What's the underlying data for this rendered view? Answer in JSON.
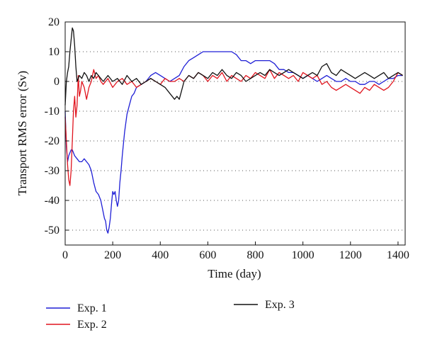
{
  "chart_data": {
    "type": "line",
    "xlabel": "Time (day)",
    "ylabel": "Transport RMS error (Sv)",
    "xlim": [
      0,
      1430
    ],
    "ylim": [
      -55,
      20
    ],
    "xticks": [
      0,
      200,
      400,
      600,
      800,
      1000,
      1200,
      1400
    ],
    "yticks": [
      -50,
      -40,
      -30,
      -20,
      -10,
      0,
      10,
      20
    ],
    "grid": "dotted horizontal",
    "legend_position": "bottom",
    "series": [
      {
        "name": "Exp. 1",
        "color": "#1f1fd6",
        "x": [
          0,
          5,
          10,
          15,
          20,
          25,
          30,
          40,
          50,
          60,
          70,
          80,
          90,
          100,
          110,
          120,
          130,
          140,
          150,
          155,
          160,
          165,
          170,
          175,
          180,
          185,
          190,
          195,
          200,
          205,
          210,
          215,
          220,
          225,
          230,
          235,
          240,
          250,
          260,
          270,
          280,
          290,
          300,
          320,
          340,
          360,
          380,
          400,
          420,
          440,
          460,
          480,
          500,
          520,
          540,
          560,
          580,
          600,
          620,
          640,
          660,
          680,
          700,
          720,
          740,
          760,
          780,
          800,
          820,
          840,
          860,
          880,
          900,
          920,
          940,
          960,
          980,
          1000,
          1020,
          1040,
          1060,
          1080,
          1100,
          1120,
          1140,
          1160,
          1180,
          1200,
          1220,
          1240,
          1260,
          1280,
          1300,
          1320,
          1340,
          1360,
          1380,
          1400,
          1420
        ],
        "y": [
          -10,
          -22,
          -27,
          -25,
          -24,
          -23,
          -23,
          -25,
          -26,
          -27,
          -27,
          -26,
          -27,
          -28,
          -30,
          -34,
          -37,
          -38,
          -40,
          -42,
          -44,
          -46,
          -47,
          -50,
          -51,
          -49,
          -46,
          -41,
          -37,
          -38,
          -37,
          -40,
          -42,
          -40,
          -34,
          -30,
          -25,
          -17,
          -11,
          -8,
          -5,
          -4,
          -2,
          -1,
          0,
          2,
          3,
          2,
          1,
          0,
          1,
          2,
          5,
          7,
          8,
          9,
          10,
          10,
          10,
          10,
          10,
          10,
          10,
          9,
          7,
          7,
          6,
          7,
          7,
          7,
          7,
          6,
          4,
          4,
          3,
          3,
          2,
          1,
          2,
          1,
          0,
          1,
          2,
          1,
          0,
          0,
          1,
          0,
          0,
          -1,
          -1,
          0,
          0,
          -1,
          0,
          1,
          1,
          2,
          2
        ]
      },
      {
        "name": "Exp. 2",
        "color": "#e0141e",
        "x": [
          0,
          5,
          10,
          15,
          20,
          25,
          30,
          35,
          40,
          45,
          50,
          55,
          60,
          65,
          70,
          80,
          90,
          100,
          110,
          120,
          130,
          140,
          150,
          160,
          180,
          200,
          220,
          240,
          260,
          280,
          300,
          320,
          340,
          360,
          380,
          400,
          420,
          440,
          460,
          480,
          500,
          520,
          540,
          560,
          580,
          600,
          620,
          640,
          660,
          680,
          700,
          720,
          740,
          760,
          780,
          800,
          820,
          840,
          860,
          880,
          900,
          920,
          940,
          960,
          980,
          1000,
          1020,
          1040,
          1060,
          1080,
          1100,
          1120,
          1140,
          1160,
          1180,
          1200,
          1220,
          1240,
          1260,
          1280,
          1300,
          1320,
          1340,
          1360,
          1380,
          1400,
          1420
        ],
        "y": [
          -12,
          -20,
          -28,
          -33,
          -35,
          -30,
          -20,
          -10,
          -5,
          -12,
          -8,
          2,
          -5,
          -3,
          0,
          -2,
          -6,
          -2,
          0,
          4,
          1,
          2,
          0,
          -1,
          1,
          -2,
          0,
          1,
          -1,
          0,
          -2,
          -1,
          0,
          1,
          0,
          -1,
          1,
          0,
          0,
          1,
          0,
          2,
          1,
          3,
          2,
          0,
          2,
          1,
          3,
          0,
          2,
          1,
          0,
          2,
          1,
          3,
          2,
          1,
          4,
          1,
          3,
          2,
          1,
          2,
          0,
          3,
          2,
          1,
          2,
          -1,
          0,
          -2,
          -3,
          -2,
          -1,
          -2,
          -3,
          -4,
          -2,
          -3,
          -1,
          -2,
          -3,
          -2,
          0,
          3,
          2
        ]
      },
      {
        "name": "Exp. 3",
        "color": "#111111",
        "x": [
          0,
          5,
          10,
          15,
          20,
          25,
          30,
          35,
          40,
          45,
          50,
          60,
          70,
          80,
          90,
          100,
          110,
          120,
          130,
          140,
          150,
          160,
          180,
          200,
          220,
          240,
          260,
          280,
          300,
          320,
          340,
          360,
          380,
          400,
          420,
          440,
          460,
          470,
          480,
          490,
          500,
          520,
          540,
          560,
          580,
          600,
          620,
          640,
          660,
          680,
          700,
          720,
          740,
          760,
          780,
          800,
          820,
          840,
          860,
          880,
          900,
          920,
          940,
          960,
          980,
          1000,
          1020,
          1040,
          1060,
          1080,
          1100,
          1120,
          1140,
          1160,
          1180,
          1200,
          1220,
          1240,
          1260,
          1280,
          1300,
          1320,
          1340,
          1360,
          1380,
          1400,
          1420
        ],
        "y": [
          -8,
          0,
          3,
          5,
          10,
          14,
          18,
          17,
          12,
          5,
          0,
          2,
          1,
          3,
          2,
          0,
          2,
          1,
          3,
          2,
          1,
          0,
          2,
          0,
          1,
          -1,
          2,
          0,
          1,
          -1,
          0,
          1,
          0,
          -1,
          -2,
          -4,
          -6,
          -5,
          -6,
          -3,
          0,
          2,
          1,
          3,
          2,
          1,
          3,
          2,
          4,
          2,
          1,
          3,
          2,
          0,
          1,
          2,
          3,
          2,
          4,
          3,
          2,
          3,
          4,
          3,
          2,
          1,
          2,
          3,
          2,
          5,
          6,
          3,
          2,
          4,
          3,
          2,
          1,
          2,
          3,
          2,
          1,
          2,
          3,
          1,
          2,
          3,
          2
        ]
      }
    ]
  }
}
